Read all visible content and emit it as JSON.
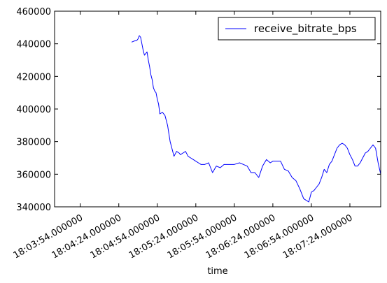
{
  "chart_data": {
    "type": "line",
    "title": "",
    "xlabel": "time",
    "ylabel": "",
    "x_range": [
      "18:03:34",
      "18:07:48"
    ],
    "ylim": [
      340000,
      460000
    ],
    "x_ticks": [
      "18:03:54.000000",
      "18:04:24.000000",
      "18:04:54.000000",
      "18:05:24.000000",
      "18:05:54.000000",
      "18:06:24.000000",
      "18:06:54.000000",
      "18:07:24.000000"
    ],
    "y_ticks": [
      340000,
      360000,
      380000,
      400000,
      420000,
      440000,
      460000
    ],
    "grid": false,
    "legend": {
      "position": "top-right"
    },
    "series": [
      {
        "name": "receive_bitrate_bps",
        "color": "#0000ff",
        "x": [
          "18:04:34",
          "18:04:37",
          "18:04:38",
          "18:04:39",
          "18:04:40",
          "18:04:41",
          "18:04:42",
          "18:04:43",
          "18:04:44",
          "18:04:45",
          "18:04:46",
          "18:04:47",
          "18:04:48",
          "18:04:49",
          "18:04:50",
          "18:04:51",
          "18:04:52",
          "18:04:53",
          "18:04:54",
          "18:04:55",
          "18:04:56",
          "18:04:58",
          "18:05:00",
          "18:05:02",
          "18:05:03",
          "18:05:04",
          "18:05:05",
          "18:05:07",
          "18:05:09",
          "18:05:11",
          "18:05:12",
          "18:05:14",
          "18:05:16",
          "18:05:18",
          "18:05:20",
          "18:05:22",
          "18:05:24",
          "18:05:26",
          "18:05:28",
          "18:05:31",
          "18:05:34",
          "18:05:37",
          "18:05:40",
          "18:05:43",
          "18:05:46",
          "18:05:50",
          "18:05:54",
          "18:05:58",
          "18:06:01",
          "18:06:04",
          "18:06:07",
          "18:06:10",
          "18:06:13",
          "18:06:16",
          "18:06:19",
          "18:06:22",
          "18:06:24",
          "18:06:27",
          "18:06:30",
          "18:06:33",
          "18:06:36",
          "18:06:39",
          "18:06:42",
          "18:06:45",
          "18:06:48",
          "18:06:50",
          "18:06:52",
          "18:06:54",
          "18:06:56",
          "18:06:58",
          "18:07:00",
          "18:07:02",
          "18:07:04",
          "18:07:06",
          "18:07:08",
          "18:07:10",
          "18:07:12",
          "18:07:14",
          "18:07:16",
          "18:07:18",
          "18:07:20",
          "18:07:22",
          "18:07:24",
          "18:07:26",
          "18:07:28",
          "18:07:30",
          "18:07:32",
          "18:07:34",
          "18:07:36",
          "18:07:38",
          "18:07:40",
          "18:07:42",
          "18:07:44",
          "18:07:46",
          "18:07:48"
        ],
        "y": [
          441000,
          442000,
          442000,
          443000,
          445000,
          444000,
          440000,
          436000,
          433000,
          434000,
          435000,
          430000,
          426000,
          421000,
          418000,
          413000,
          411000,
          410000,
          406000,
          403000,
          397000,
          398000,
          396000,
          390000,
          385000,
          380000,
          377000,
          371000,
          374000,
          373000,
          372000,
          373000,
          374000,
          371000,
          370000,
          369000,
          368000,
          367000,
          366000,
          366000,
          367000,
          361000,
          365000,
          364000,
          366000,
          366000,
          366000,
          367000,
          366000,
          365000,
          361000,
          361000,
          358000,
          365000,
          369000,
          367000,
          368000,
          368000,
          368000,
          363000,
          362000,
          358000,
          356000,
          351000,
          345000,
          344000,
          343000,
          349000,
          350000,
          352000,
          354000,
          358000,
          363000,
          361000,
          366000,
          368000,
          372000,
          376000,
          378000,
          379000,
          378000,
          376000,
          372000,
          369000,
          365000,
          365000,
          367000,
          370000,
          373000,
          374000,
          376000,
          378000,
          376000,
          367000,
          360000
        ]
      }
    ]
  }
}
